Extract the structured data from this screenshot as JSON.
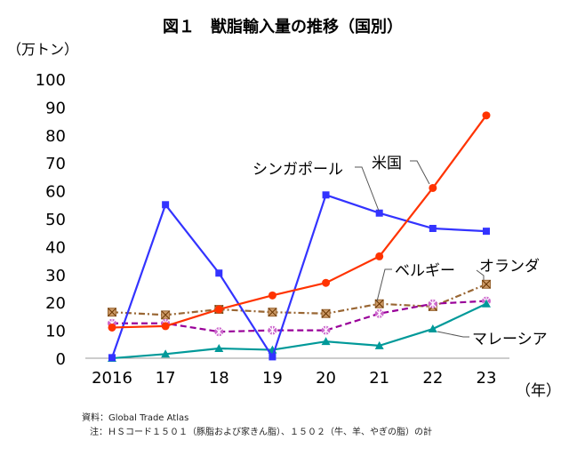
{
  "chart_data": {
    "type": "line",
    "title": "図１　獣脂輸入量の推移（国別）",
    "ylabel": "（万トン）",
    "xlabel": "（年）",
    "categories": [
      "2016",
      "17",
      "18",
      "19",
      "20",
      "21",
      "22",
      "23"
    ],
    "ylim": [
      0,
      100
    ],
    "yticks": [
      0,
      10,
      20,
      30,
      40,
      50,
      60,
      70,
      80,
      90,
      100
    ],
    "grid": false,
    "series": [
      {
        "name": "米国",
        "color": "#ff3300",
        "marker": "circle",
        "dash": "solid",
        "values": [
          11,
          11.5,
          17.5,
          22.5,
          27,
          36.5,
          61,
          87
        ]
      },
      {
        "name": "シンガポール",
        "color": "#3333ff",
        "marker": "square",
        "dash": "solid",
        "values": [
          0.2,
          55,
          30.5,
          0.5,
          58.5,
          52,
          46.5,
          45.5
        ]
      },
      {
        "name": "ベルギー",
        "color": "#996633",
        "marker": "x-square",
        "dash": "dashdot",
        "values": [
          16.5,
          15.5,
          17.5,
          16.5,
          16,
          19.5,
          18.5,
          26.5
        ]
      },
      {
        "name": "オランダ",
        "color": "#990099",
        "marker": "star",
        "dash": "dash",
        "values": [
          12.5,
          12.5,
          9.5,
          10,
          10,
          16,
          19.5,
          20.5
        ]
      },
      {
        "name": "マレーシア",
        "color": "#009999",
        "marker": "triangle",
        "dash": "solid",
        "values": [
          0,
          1.5,
          3.5,
          3,
          6,
          4.5,
          10.5,
          19.5
        ]
      }
    ],
    "annotations": [
      "シンガポール",
      "米国",
      "ベルギー",
      "オランダ",
      "マレーシア"
    ]
  },
  "source": {
    "line1": "資料：Global Trade Atlas",
    "line2": "注：ＨＳコード１５０１（豚脂および家きん脂）、１５０２（牛、羊、やぎの脂）の計"
  }
}
